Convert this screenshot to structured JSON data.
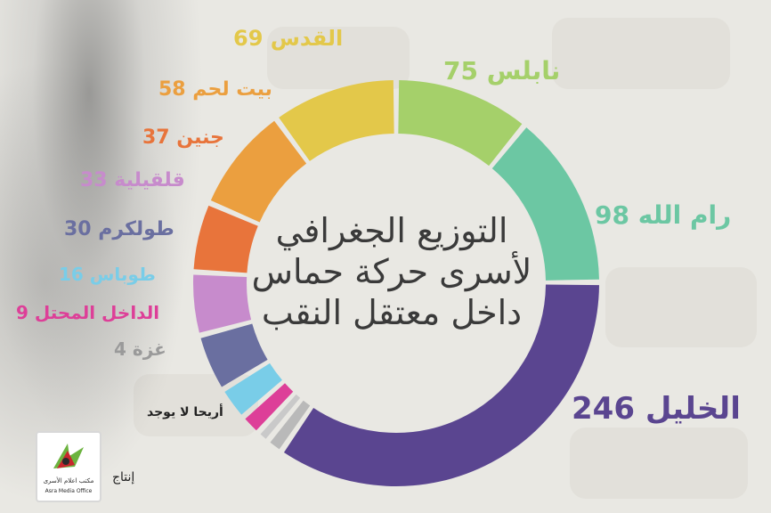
{
  "title_lines": [
    "التوزيع الجغرافي",
    "لأسرى حركة حماس",
    "داخل معتقل النقب"
  ],
  "producer_label": "إنتاج",
  "logo": {
    "arabic": "مكتب اعلام الأسرى",
    "english": "Asra Media Office"
  },
  "chart_data": {
    "type": "pie",
    "style": "donut",
    "categories": [
      "نابلس",
      "رام الله",
      "الخليل",
      "أريحا",
      "غزة",
      "الداخل المحتل",
      "طوباس",
      "طولكرم",
      "قلقيلية",
      "جنين",
      "بيت لحم",
      "القدس"
    ],
    "values": [
      75,
      98,
      246,
      0,
      4,
      9,
      16,
      30,
      33,
      37,
      58,
      69
    ],
    "colors": [
      "#a5d06a",
      "#6cc7a3",
      "#5a4590",
      "#b9b9b9",
      "#c9c9c9",
      "#dd3f98",
      "#79cde8",
      "#6a6fa0",
      "#c78bcc",
      "#e8743b",
      "#eb9f3f",
      "#e3c84a"
    ],
    "data_labels": [
      "نابلس 75",
      "رام الله 98",
      "الخليل 246",
      "أريحا لا يوجد",
      "غزة 4",
      "الداخل المحتل 9",
      "طوباس  16",
      "طولكرم 30",
      "قلقيلية 33",
      "جنين 37",
      "بيت لحم 58",
      "القدس 69"
    ]
  }
}
